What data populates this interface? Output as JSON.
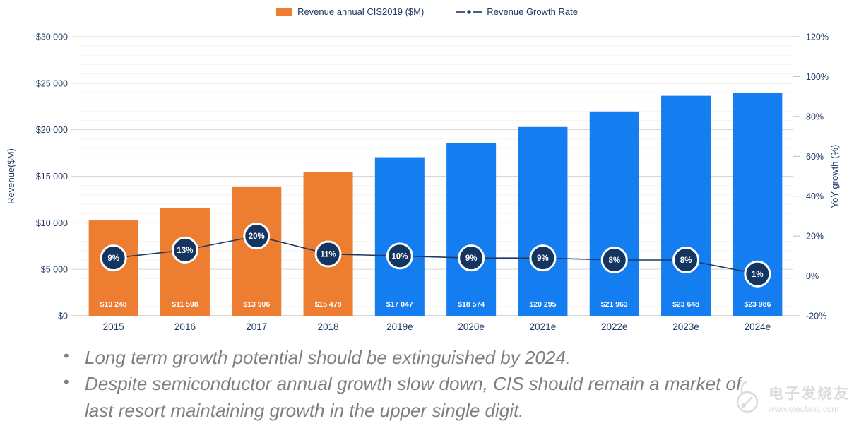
{
  "legend": {
    "items": [
      {
        "label": "Revenue annual CIS2019 ($M)",
        "marker": "bar-swatch",
        "color": "#ED7D31"
      },
      {
        "label": "Revenue Growth Rate",
        "marker": "dash-dot-dash",
        "color": "#1F3864"
      }
    ]
  },
  "chart_data": {
    "type": "bar",
    "categories": [
      "2015",
      "2016",
      "2017",
      "2018",
      "2019e",
      "2020e",
      "2021e",
      "2022e",
      "2023e",
      "2024e"
    ],
    "series": [
      {
        "name": "Revenue annual CIS2019 ($M)",
        "type": "bar",
        "axis": "left",
        "values": [
          10248,
          11598,
          13906,
          15478,
          17047,
          18574,
          20295,
          21963,
          23648,
          23986
        ],
        "data_labels": [
          "$10 248",
          "$11 598",
          "$13 906",
          "$15 478",
          "$17 047",
          "$18 574",
          "$20 295",
          "$21 963",
          "$23 648",
          "$23 986"
        ],
        "colors": [
          "#ED7D31",
          "#ED7D31",
          "#ED7D31",
          "#ED7D31",
          "#147DF0",
          "#147DF0",
          "#147DF0",
          "#147DF0",
          "#147DF0",
          "#147DF0"
        ]
      },
      {
        "name": "Revenue Growth Rate",
        "type": "line",
        "axis": "right",
        "values": [
          9,
          13,
          20,
          11,
          10,
          9,
          9,
          8,
          8,
          1
        ],
        "data_labels": [
          "9%",
          "13%",
          "20%",
          "11%",
          "10%",
          "9%",
          "9%",
          "8%",
          "8%",
          "1%"
        ],
        "line_color": "#1F3864",
        "marker_fill": "#14355F",
        "marker_ring": "#FFFFFF"
      }
    ],
    "left_axis": {
      "title": "Revenue($M)",
      "min": 0,
      "max": 30000,
      "tick_step": 5000,
      "minor_step": 1000,
      "tick_labels": [
        "$30 000",
        "$25 000",
        "$20 000",
        "$15 000",
        "$10 000",
        "$5 000",
        "$0"
      ]
    },
    "right_axis": {
      "title": "YoY growth (%)",
      "min": -20,
      "max": 120,
      "tick_step": 20,
      "tick_labels": [
        "120%",
        "100%",
        "80%",
        "60%",
        "40%",
        "20%",
        "0%",
        "-20%"
      ]
    },
    "grid": true,
    "legend_position": "top"
  },
  "notes": {
    "bullets": [
      "Long term growth potential should be extinguished by 2024.",
      "Despite semiconductor annual growth slow down, CIS should remain a market of last resort maintaining growth in the upper single digit."
    ]
  },
  "watermark": {
    "site_name": "电子发烧友",
    "site_url": "www.elecfans.com"
  },
  "colors": {
    "bar_orange": "#ED7D31",
    "bar_blue": "#147DF0",
    "navy_text": "#1F3864",
    "line": "#1F3864",
    "marker_fill": "#14355F",
    "grid_major": "#D6D6D6",
    "grid_minor": "#F4F4F4",
    "axis_line": "#BFBFBF",
    "notes_gray": "#7F7F7F",
    "watermark_gray": "#DCDCDC"
  }
}
